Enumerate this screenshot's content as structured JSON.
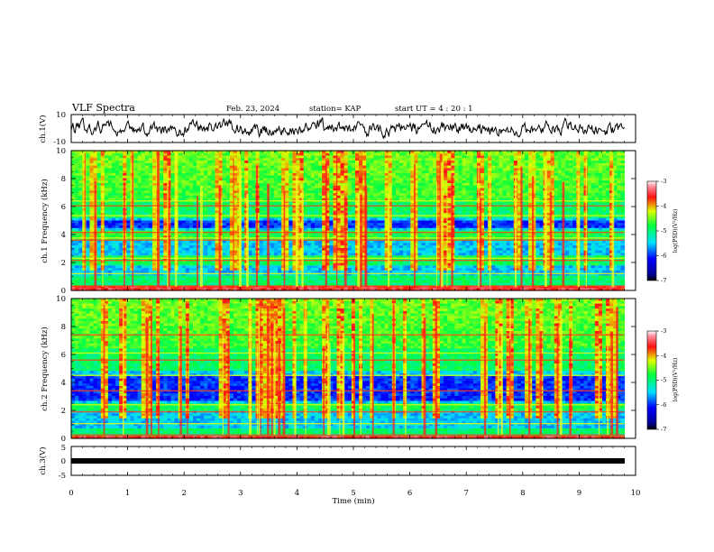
{
  "header": {
    "title": "VLF Spectra",
    "date": "Feb. 23, 2024",
    "station": "station= KAP",
    "start_ut": "start UT = 4 : 20 : 1"
  },
  "chart_data": [
    {
      "type": "line",
      "panel": "ch1-waveform",
      "ylabel": "ch.1(V)",
      "ylim": [
        -10,
        10
      ],
      "y_ticklabels": [
        "10",
        "-10"
      ],
      "xlim": [
        0,
        10
      ],
      "series": [
        {
          "color": "#000000",
          "x_range": [
            0,
            9.8
          ],
          "approx_level": 0,
          "approx_amplitude": 4
        }
      ]
    },
    {
      "type": "heatmap",
      "panel": "ch1-spectrogram",
      "ylabel": "ch.1 Frequency (kHz)",
      "ylim": [
        0,
        10
      ],
      "y_ticklabels": [
        "0",
        "2",
        "4",
        "6",
        "8",
        "10"
      ],
      "xlim": [
        0,
        10
      ],
      "data_x_range": [
        0,
        9.8
      ],
      "colorbar": {
        "label": "log(PSD)(V²/Hz)",
        "range": [
          -7,
          -3
        ],
        "ticklabels": [
          "-3",
          "-4",
          "-5",
          "-6",
          "-7"
        ]
      },
      "bands_khz": {
        "red_low": [
          0.0,
          0.3
        ],
        "cyan_blue": [
          [
            1.0,
            1.8
          ],
          [
            2.5,
            3.5
          ],
          [
            4.3,
            5.2
          ]
        ],
        "dark_blue": [
          4.5,
          5.0
        ],
        "green_mid": [
          5.2,
          6.5
        ],
        "green_yellow_high": [
          6.5,
          10.0
        ],
        "horizontal_lines": [
          0.3,
          1.2,
          2.15,
          2.3,
          3.6,
          3.75,
          4.15,
          5.35,
          6.05,
          6.4
        ]
      }
    },
    {
      "type": "heatmap",
      "panel": "ch2-spectrogram",
      "ylabel": "ch.2 Frequency (kHz)",
      "ylim": [
        0,
        10
      ],
      "y_ticklabels": [
        "0",
        "2",
        "4",
        "6",
        "8",
        "10"
      ],
      "xlim": [
        0,
        10
      ],
      "data_x_range": [
        0,
        9.8
      ],
      "colorbar": {
        "label": "log(PSD)(V²/Hz)",
        "range": [
          -7,
          -3
        ],
        "ticklabels": [
          "-3",
          "-4",
          "-5",
          "-6",
          "-7"
        ]
      },
      "bands_khz": {
        "red_low": [
          0.0,
          0.2
        ],
        "cyan_blue": [
          [
            0.8,
            2.0
          ],
          [
            2.5,
            4.8
          ]
        ],
        "dark_blue": [
          2.6,
          4.4
        ],
        "green_mid": [
          4.8,
          6.5
        ],
        "green_yellow_high": [
          6.5,
          10.0
        ],
        "horizontal_lines": [
          0.25,
          1.05,
          1.9,
          2.4,
          3.4,
          4.5,
          5.6,
          6.1,
          7.4
        ]
      }
    },
    {
      "type": "line",
      "panel": "ch3-waveform",
      "ylabel": "ch.3(V)",
      "ylim": [
        -5,
        5
      ],
      "y_ticklabels": [
        "5",
        "0",
        "-5"
      ],
      "xlim": [
        0,
        10
      ],
      "xlabel": "Time (min)",
      "x_ticklabels": [
        "0",
        "1",
        "2",
        "3",
        "4",
        "5",
        "6",
        "7",
        "8",
        "9",
        "10"
      ],
      "series": [
        {
          "color": "#000000",
          "x_range": [
            0,
            9.8
          ],
          "value": 0
        }
      ]
    }
  ]
}
